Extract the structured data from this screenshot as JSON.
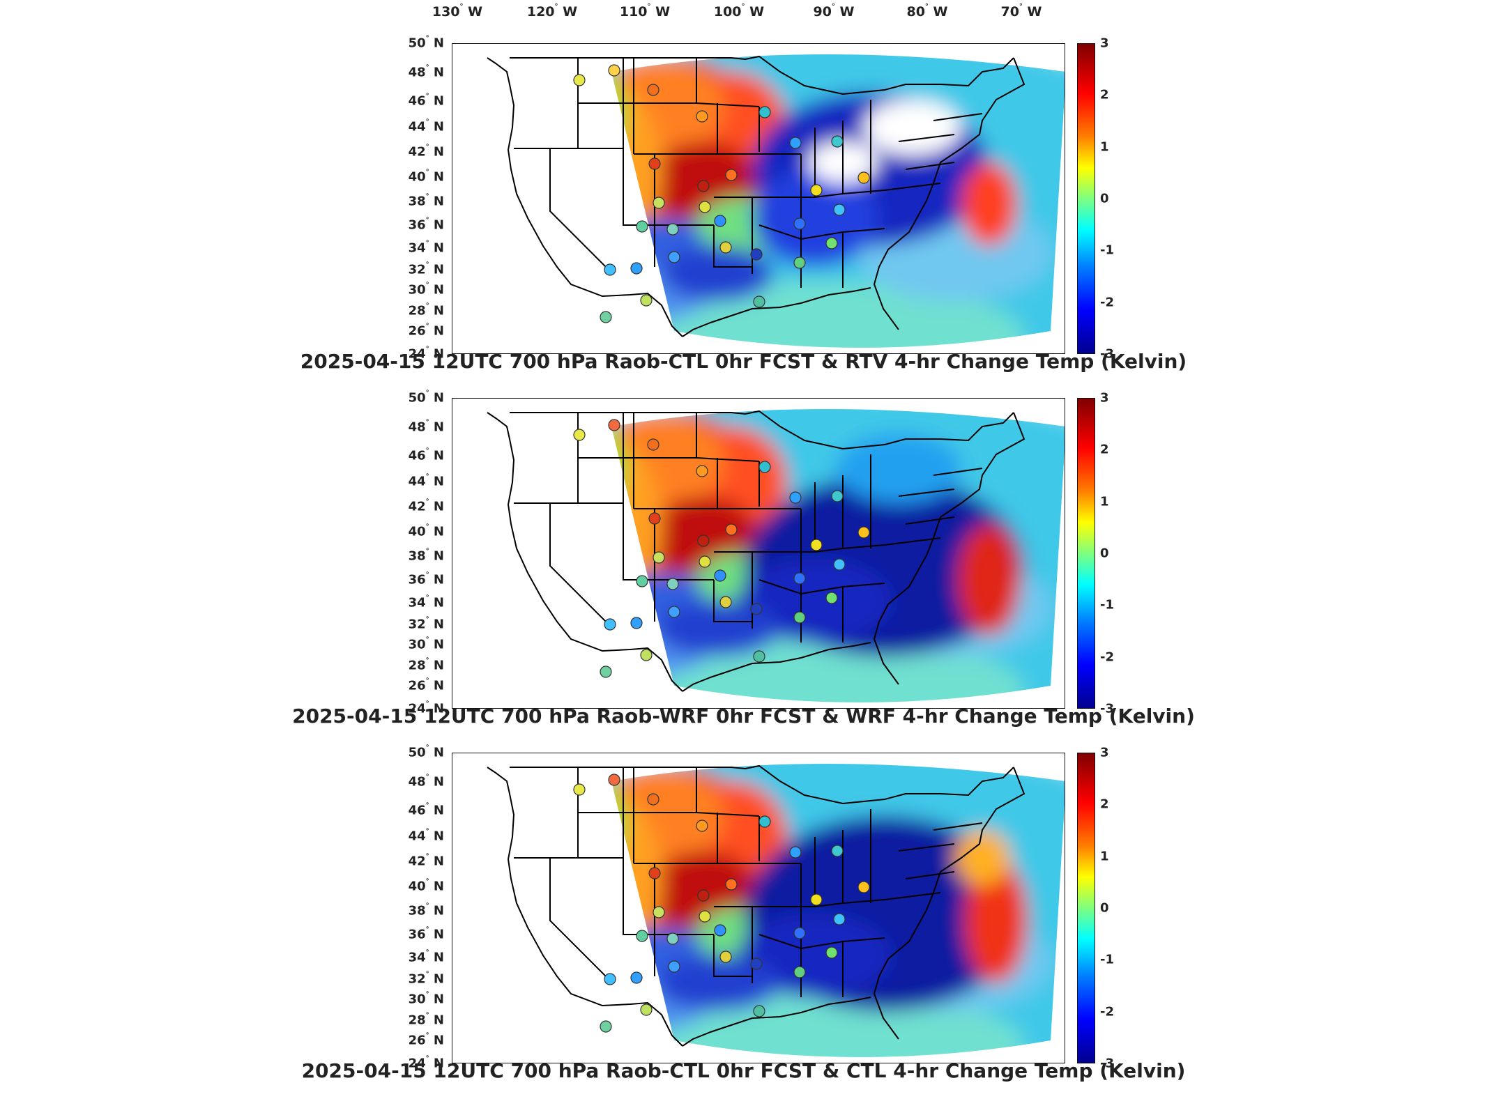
{
  "longitude_labels": [
    {
      "deg": "130",
      "dir": "W"
    },
    {
      "deg": "120",
      "dir": "W"
    },
    {
      "deg": "110",
      "dir": "W"
    },
    {
      "deg": "100",
      "dir": "W"
    },
    {
      "deg": "90",
      "dir": "W"
    },
    {
      "deg": "80",
      "dir": "W"
    },
    {
      "deg": "70",
      "dir": "W"
    }
  ],
  "latitude_labels": [
    {
      "deg": "50",
      "dir": "N"
    },
    {
      "deg": "48",
      "dir": "N"
    },
    {
      "deg": "46",
      "dir": "N"
    },
    {
      "deg": "44",
      "dir": "N"
    },
    {
      "deg": "42",
      "dir": "N"
    },
    {
      "deg": "40",
      "dir": "N"
    },
    {
      "deg": "38",
      "dir": "N"
    },
    {
      "deg": "36",
      "dir": "N"
    },
    {
      "deg": "34",
      "dir": "N"
    },
    {
      "deg": "32",
      "dir": "N"
    },
    {
      "deg": "30",
      "dir": "N"
    },
    {
      "deg": "28",
      "dir": "N"
    },
    {
      "deg": "26",
      "dir": "N"
    },
    {
      "deg": "24",
      "dir": "N"
    }
  ],
  "colorbar": {
    "ticks": [
      "3",
      "2",
      "1",
      "0",
      "-1",
      "-2",
      "-3"
    ],
    "colors": [
      "#7f0000",
      "#ff0000",
      "#ff7f00",
      "#ffff00",
      "#7fff7f",
      "#00ffff",
      "#007fff",
      "#0000ff",
      "#00008f"
    ]
  },
  "panels": [
    {
      "title": "2025-04-15 12UTC 700 hPa Raob-CTL 0hr FCST & RTV 4-hr Change Temp (Kelvin)",
      "variant": "rtv"
    },
    {
      "title": "2025-04-15 12UTC 700 hPa Raob-WRF 0hr FCST & WRF 4-hr Change Temp (Kelvin)",
      "variant": "wrf"
    },
    {
      "title": "2025-04-15 12UTC 700 hPa Raob-CTL 0hr FCST & CTL 4-hr Change Temp (Kelvin)",
      "variant": "ctl"
    }
  ]
}
